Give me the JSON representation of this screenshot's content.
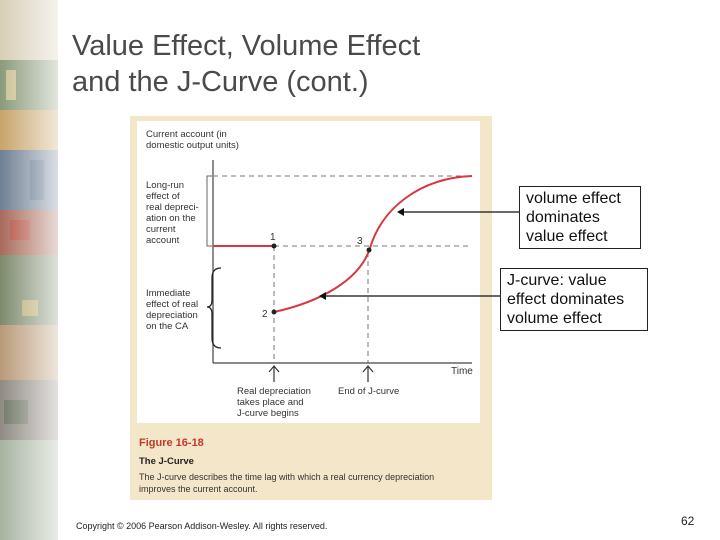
{
  "slide": {
    "title_line1": "Value Effect, Volume Effect",
    "title_line2": "and the J-Curve (cont.)",
    "page_number": "62",
    "copyright": "Copyright © 2006 Pearson Addison-Wesley. All rights reserved."
  },
  "figure": {
    "ylabel_line1": "Current account (in",
    "ylabel_line2": "domestic output units)",
    "longrun_lines": [
      "Long-run",
      "effect of",
      "real depreci-",
      "ation on the",
      "current",
      "account"
    ],
    "immediate_lines": [
      "Immediate",
      "effect of real",
      "depreciation",
      "on the CA"
    ],
    "xlabel": "Time",
    "point_1": "1",
    "point_2": "2",
    "point_3": "3",
    "real_dep_lines": [
      "Real depreciation",
      "takes place and",
      "J-curve begins"
    ],
    "end_jcurve": "End of J-curve",
    "fig_number": "Figure 16-18",
    "fig_title": "The J-Curve",
    "caption_line1": "The J-curve describes the time lag with which a real currency depreciation",
    "caption_line2": "improves the current account.",
    "curve_color": "#d9363e",
    "panel_color": "#f4e6c8",
    "figure_number_color": "#c0392b"
  },
  "callouts": {
    "volume_lines": [
      "volume effect",
      "dominates",
      "value effect"
    ],
    "jcurve_lines": [
      "J-curve:  value",
      "effect dominates",
      "volume effect"
    ]
  }
}
